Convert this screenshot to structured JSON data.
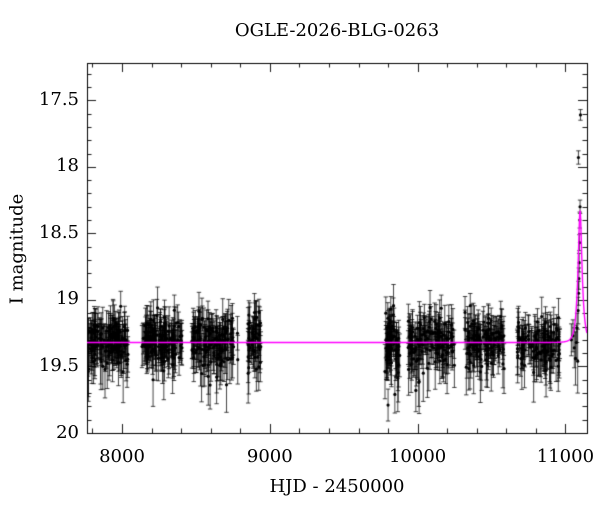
{
  "figure": {
    "title": "OGLE-2026-BLG-0263",
    "xlabel": "HJD - 2450000",
    "ylabel": "I magnitude",
    "background_color": "#ffffff",
    "frame_color": "#000000",
    "text_color": "#000000"
  },
  "chart_data": {
    "type": "scatter",
    "title": "OGLE-2026-BLG-0263",
    "xlabel": "HJD - 2450000",
    "ylabel": "I magnitude",
    "x_range": [
      7763,
      11146
    ],
    "y_range_mag": [
      17.22,
      20.0
    ],
    "y_axis_inverted": true,
    "grid": false,
    "legend": "none",
    "x_ticks": [
      {
        "value": 8000,
        "label": "8000"
      },
      {
        "value": 9000,
        "label": "9000"
      },
      {
        "value": 10000,
        "label": "10000"
      },
      {
        "value": 11000,
        "label": "11000"
      }
    ],
    "x_minor_tick_step": 200,
    "y_ticks": [
      {
        "value": 17.5,
        "label": "17.5"
      },
      {
        "value": 18.0,
        "label": "18"
      },
      {
        "value": 18.5,
        "label": "18.5"
      },
      {
        "value": 19.0,
        "label": "19"
      },
      {
        "value": 19.5,
        "label": "19.5"
      },
      {
        "value": 20.0,
        "label": "20"
      }
    ],
    "y_minor_tick_step": 0.1,
    "point_color": "#000000",
    "errorbar_color": "#000000",
    "model_color": "#ff00ff",
    "baseline_mag": 19.32,
    "model": {
      "kind": "paczynski_microlensing",
      "t0": 11099,
      "tE": 25,
      "u0": 0.43,
      "baseline_mag": 19.32,
      "peak_mag": 18.33
    },
    "seasons": [
      {
        "name": "season-1",
        "hjd_start": 7770,
        "hjd_end": 8040,
        "n_points": 140,
        "mean_mag": 19.32,
        "mag_sigma": 0.085
      },
      {
        "name": "season-2",
        "hjd_start": 8135,
        "hjd_end": 8406,
        "n_points": 140,
        "mean_mag": 19.31,
        "mag_sigma": 0.085
      },
      {
        "name": "season-3",
        "hjd_start": 8473,
        "hjd_end": 8785,
        "n_points": 140,
        "mean_mag": 19.32,
        "mag_sigma": 0.09
      },
      {
        "name": "season-4",
        "hjd_start": 8852,
        "hjd_end": 8940,
        "n_points": 50,
        "mean_mag": 19.33,
        "mag_sigma": 0.1
      },
      {
        "name": "season-5",
        "hjd_start": 9779,
        "hjd_end": 9880,
        "n_points": 65,
        "mean_mag": 19.34,
        "mag_sigma": 0.13
      },
      {
        "name": "season-6",
        "hjd_start": 9935,
        "hjd_end": 10253,
        "n_points": 130,
        "mean_mag": 19.32,
        "mag_sigma": 0.095
      },
      {
        "name": "season-7",
        "hjd_start": 10320,
        "hjd_end": 10591,
        "n_points": 115,
        "mean_mag": 19.32,
        "mag_sigma": 0.09
      },
      {
        "name": "season-8",
        "hjd_start": 10672,
        "hjd_end": 10963,
        "n_points": 115,
        "mean_mag": 19.33,
        "mag_sigma": 0.09
      }
    ],
    "outlier_points": [
      {
        "hjd": 9800,
        "mag": 19.79,
        "err": 0.12
      },
      {
        "hjd": 9846,
        "mag": 19.71,
        "err": 0.14
      },
      {
        "hjd": 9988,
        "mag": 19.68,
        "err": 0.16
      },
      {
        "hjd": 10008,
        "mag": 19.62,
        "err": 0.18
      },
      {
        "hjd": 8210,
        "mag": 19.6,
        "err": 0.2
      },
      {
        "hjd": 8596,
        "mag": 19.64,
        "err": 0.18
      },
      {
        "hjd": 8640,
        "mag": 19.58,
        "err": 0.2
      }
    ],
    "event_points": [
      {
        "hjd": 11040,
        "mag": 19.3,
        "err": 0.12
      },
      {
        "hjd": 11051,
        "mag": 19.27,
        "err": 0.12
      },
      {
        "hjd": 11060,
        "mag": 19.36,
        "err": 0.15
      },
      {
        "hjd": 11068,
        "mag": 19.44,
        "err": 0.2
      },
      {
        "hjd": 11074,
        "mag": 19.32,
        "err": 0.13
      },
      {
        "hjd": 11079,
        "mag": 19.21,
        "err": 0.11
      },
      {
        "hjd": 11083,
        "mag": 19.46,
        "err": 0.24
      },
      {
        "hjd": 11086,
        "mag": 19.08,
        "err": 0.1
      },
      {
        "hjd": 11089,
        "mag": 18.95,
        "err": 0.09
      },
      {
        "hjd": 11091,
        "mag": 18.84,
        "err": 0.08
      },
      {
        "hjd": 11093,
        "mag": 18.72,
        "err": 0.07
      },
      {
        "hjd": 11095,
        "mag": 18.57,
        "err": 0.06
      },
      {
        "hjd": 11097,
        "mag": 18.4,
        "err": 0.06
      },
      {
        "hjd": 11099,
        "mag": 18.3,
        "err": 0.05
      },
      {
        "hjd": 11088,
        "mag": 17.93,
        "err": 0.05
      },
      {
        "hjd": 11102,
        "mag": 17.61,
        "err": 0.04
      }
    ],
    "random_seed": 7
  }
}
